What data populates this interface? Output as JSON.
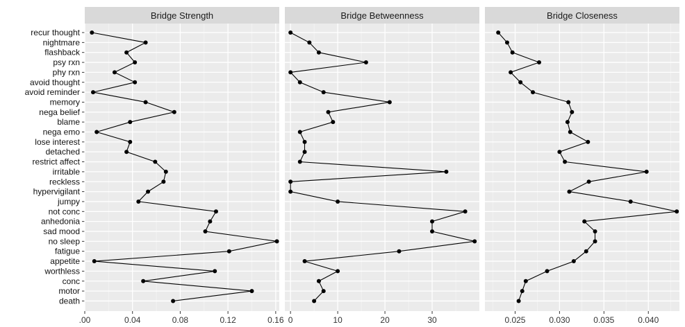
{
  "chart_data": {
    "type": "line",
    "orientation": "horizontal",
    "grid": true,
    "categories": [
      "recur thought",
      "nightmare",
      "flashback",
      "psy rxn",
      "phy rxn",
      "avoid thought",
      "avoid reminder",
      "memory",
      "nega belief",
      "blame",
      "nega emo",
      "lose interest",
      "detached",
      "restrict affect",
      "irritable",
      "reckless",
      "hypervigilant",
      "jumpy",
      "not conc",
      "anhedonia",
      "sad mood",
      "no sleep",
      "fatigue",
      "appetite",
      "worthless",
      "conc",
      "motor",
      "death"
    ],
    "panels": [
      {
        "title": "Bridge Strength",
        "xlim": [
          0,
          0.163
        ],
        "xticks": [
          0.0,
          0.04,
          0.08,
          0.12,
          0.16
        ],
        "xticklabels": [
          ".00",
          "0.04",
          "0.08",
          "0.12",
          "0.16"
        ],
        "values": [
          0.006,
          0.051,
          0.035,
          0.042,
          0.025,
          0.042,
          0.007,
          0.051,
          0.075,
          0.038,
          0.01,
          0.038,
          0.035,
          0.059,
          0.068,
          0.066,
          0.053,
          0.045,
          0.11,
          0.105,
          0.101,
          0.161,
          0.121,
          0.008,
          0.109,
          0.049,
          0.14,
          0.074
        ]
      },
      {
        "title": "Bridge Betweenness",
        "xlim": [
          -1.2,
          40
        ],
        "xticks": [
          0,
          10,
          20,
          30
        ],
        "xticklabels": [
          "0",
          "10",
          "20",
          "30"
        ],
        "values": [
          0,
          4,
          6,
          16,
          0,
          2,
          7,
          21,
          8,
          9,
          2,
          3,
          3,
          2,
          33,
          0,
          0,
          10,
          37,
          30,
          30,
          39,
          23,
          3,
          10,
          6,
          7,
          5
        ]
      },
      {
        "title": "Bridge Closeness",
        "xlim": [
          0.0216,
          0.0435
        ],
        "xticks": [
          0.025,
          0.03,
          0.035,
          0.04
        ],
        "xticklabels": [
          "0.025",
          "0.030",
          "0.035",
          "0.040"
        ],
        "values": [
          0.0231,
          0.0241,
          0.0247,
          0.0277,
          0.0245,
          0.0256,
          0.027,
          0.031,
          0.0314,
          0.0309,
          0.0312,
          0.0332,
          0.03,
          0.0306,
          0.0398,
          0.0333,
          0.0311,
          0.038,
          0.0432,
          0.0328,
          0.034,
          0.034,
          0.033,
          0.0316,
          0.0286,
          0.0262,
          0.0258,
          0.0254
        ]
      }
    ]
  }
}
